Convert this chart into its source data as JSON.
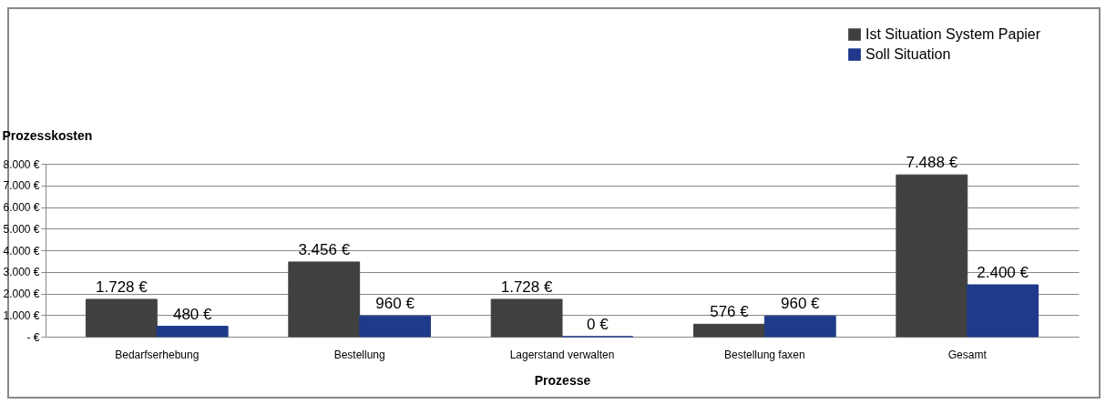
{
  "chart_data": {
    "type": "bar",
    "xlabel": "Prozesse",
    "ylabel": "Prozesskosten",
    "categories": [
      "Bedarfserhebung",
      "Bestellung",
      "Lagerstand verwalten",
      "Bestellung faxen",
      "Gesamt"
    ],
    "series": [
      {
        "name": "Ist Situation System Papier",
        "color": "#404040",
        "values": [
          1728,
          3456,
          1728,
          576,
          7488
        ],
        "value_labels": [
          "1.728 €",
          "3.456 €",
          "1.728 €",
          "576 €",
          "7.488 €"
        ]
      },
      {
        "name": "Soll Situation",
        "color": "#1f3a8a",
        "values": [
          480,
          960,
          0,
          960,
          2400
        ],
        "value_labels": [
          "480 €",
          "960 €",
          "0 €",
          "960 €",
          "2.400 €"
        ]
      }
    ],
    "ylim": [
      0,
      8000
    ],
    "yticks": [
      {
        "value": 0,
        "label": "- €"
      },
      {
        "value": 1000,
        "label": "1.000 €"
      },
      {
        "value": 2000,
        "label": "2.000 €"
      },
      {
        "value": 3000,
        "label": "3.000 €"
      },
      {
        "value": 4000,
        "label": "4.000 €"
      },
      {
        "value": 5000,
        "label": "5.000 €"
      },
      {
        "value": 6000,
        "label": "6.000 €"
      },
      {
        "value": 7000,
        "label": "7.000 €"
      },
      {
        "value": 8000,
        "label": "8.000 €"
      }
    ],
    "grid": "y",
    "legend": "top right"
  }
}
